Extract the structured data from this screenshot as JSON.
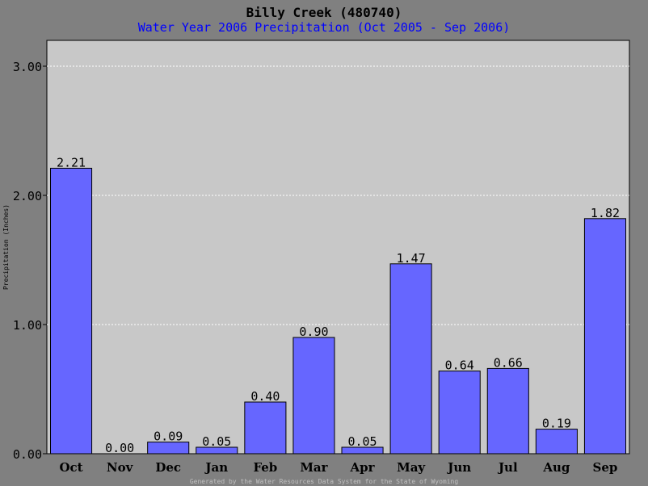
{
  "chart_data": {
    "type": "bar",
    "title": "Billy Creek (480740)",
    "subtitle": "Water Year 2006 Precipitation (Oct 2005 - Sep 2006)",
    "ylabel": "Precipitation (Inches)",
    "xlabel": "",
    "ylim": [
      0,
      3.2
    ],
    "yticks": [
      "0.00",
      "1.00",
      "2.00",
      "3.00"
    ],
    "grid": true,
    "categories": [
      "Oct",
      "Nov",
      "Dec",
      "Jan",
      "Feb",
      "Mar",
      "Apr",
      "May",
      "Jun",
      "Jul",
      "Aug",
      "Sep"
    ],
    "values": [
      2.21,
      0.0,
      0.09,
      0.05,
      0.4,
      0.9,
      0.05,
      1.47,
      0.64,
      0.66,
      0.19,
      1.82
    ],
    "value_labels": [
      "2.21",
      "0.00",
      "0.09",
      "0.05",
      "0.40",
      "0.90",
      "0.05",
      "1.47",
      "0.64",
      "0.66",
      "0.19",
      "1.82"
    ],
    "footer": "Generated by the Water Resources Data System for the State of Wyoming",
    "colors": {
      "background": "#808080",
      "plot_area": "#c8c8c8",
      "bar": "#6666ff",
      "title": "#000000",
      "subtitle": "#0000ff",
      "footer": "#c0c0c0"
    }
  }
}
